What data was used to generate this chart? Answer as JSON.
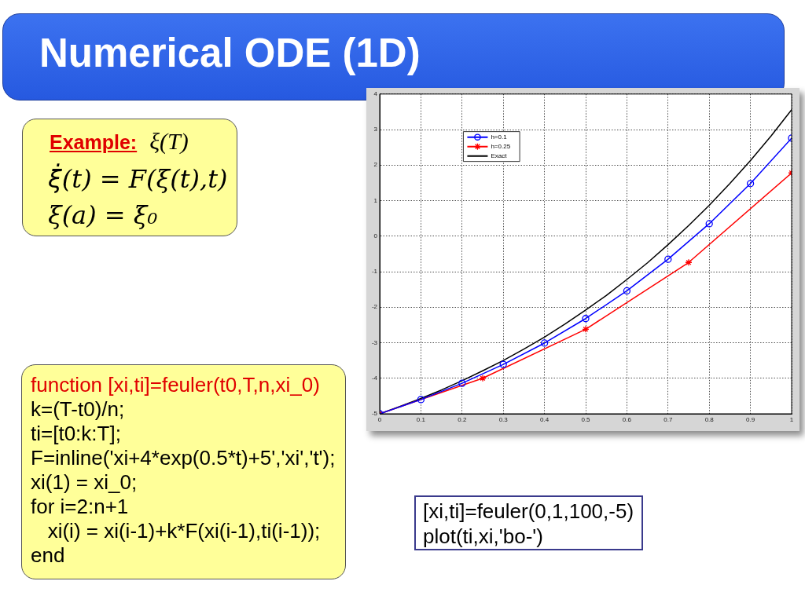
{
  "chart_data": {
    "type": "line",
    "title": "Numerical ODE (1D)",
    "annotations": [
      "Example:",
      "ξ(T)",
      "ξ̇(t) = F(ξ(t),t)",
      "ξ(a) = ξ₀",
      "function [xi,ti]=feuler(t0,T,n,xi_0)",
      "k=(T-t0)/n;",
      "ti=[t0:k:T];",
      "F=inline('xi+4*exp(0.5*t)+5','xi','t');",
      "xi(1) = xi_0;",
      "for i=2:n+1",
      "   xi(i) = xi(i-1)+k*F(xi(i-1),ti(i-1));",
      "end",
      "[xi,ti]=feuler(0,1,100,-5)",
      "plot(ti,xi,'bo-')"
    ],
    "series": [
      {
        "name": "h=0.1",
        "color": "#0000ff",
        "marker": "circle",
        "x": [
          0,
          0.1,
          0.2,
          0.3,
          0.4,
          0.5,
          0.6,
          0.7,
          0.8,
          0.9,
          1
        ],
        "values": [
          -5,
          -4.6,
          -4.14,
          -3.61,
          -3.01,
          -2.32,
          -1.54,
          -0.65,
          0.35,
          1.48,
          2.76
        ]
      },
      {
        "name": "h=0.25",
        "color": "#ff0000",
        "marker": "cross",
        "x": [
          0,
          0.25,
          0.5,
          0.75,
          1
        ],
        "values": [
          -5,
          -4,
          -2.62,
          -0.74,
          1.78
        ]
      },
      {
        "name": "Exact",
        "color": "#000000",
        "marker": "none",
        "x": [
          0,
          0.05,
          0.1,
          0.15,
          0.2,
          0.25,
          0.3,
          0.35,
          0.4,
          0.45,
          0.5,
          0.55,
          0.6,
          0.65,
          0.7,
          0.75,
          0.8,
          0.85,
          0.9,
          0.95,
          1
        ],
        "values": [
          -5,
          -4.79,
          -4.57,
          -4.33,
          -4.07,
          -3.79,
          -3.5,
          -3.18,
          -2.84,
          -2.47,
          -2.08,
          -1.67,
          -1.22,
          -0.75,
          -0.24,
          0.3,
          0.87,
          1.48,
          2.13,
          2.82,
          3.56
        ]
      }
    ],
    "xlim": [
      0,
      1
    ],
    "xticks": [
      0,
      0.1,
      0.2,
      0.3,
      0.4,
      0.5,
      0.6,
      0.7,
      0.8,
      0.9,
      1
    ],
    "ylim": [
      -5,
      4
    ],
    "yticks": [
      -5,
      -4,
      -3,
      -2,
      -1,
      0,
      1,
      2,
      3,
      4
    ],
    "grid": true,
    "legend": "top left"
  }
}
